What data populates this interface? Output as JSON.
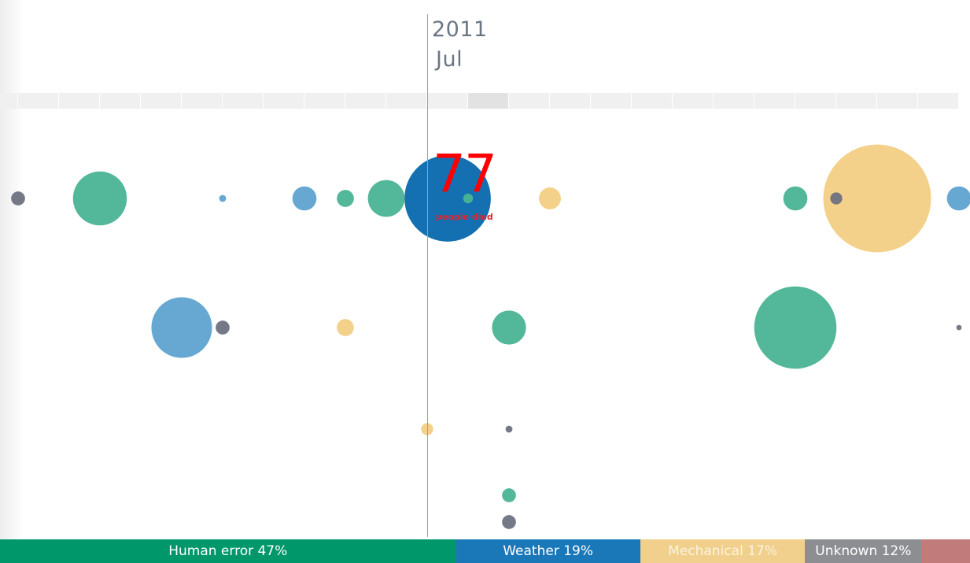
{
  "header": {
    "year": "2011",
    "month": "Jul"
  },
  "selection": {
    "deaths": "77",
    "deaths_label": "people died"
  },
  "colors": {
    "human_error": "#00976b",
    "weather": "#1b78b8",
    "mechanical": "#f1d08d",
    "unknown": "#8c8e92",
    "other": "#c27b7b",
    "human_error_bubble": "#4ab393",
    "weather_bubble": "#5ea3cf",
    "mechanical_bubble": "#f2cf84",
    "unknown_bubble": "#6e7180",
    "selected_bubble": "#1470b0",
    "highlight_text": "#ff0000"
  },
  "legend": [
    {
      "label": "Human error 47%",
      "share": 47,
      "color": "#00976b",
      "text_color": "#ffffff"
    },
    {
      "label": "Weather 19%",
      "share": 19,
      "color": "#1b78b8",
      "text_color": "#ffffff"
    },
    {
      "label": "Mechanical 17%",
      "share": 17,
      "color": "#f1d08d",
      "text_color": "#fbf3df"
    },
    {
      "label": "Unknown 12%",
      "share": 12,
      "color": "#8c8e92",
      "text_color": "#ffffff"
    },
    {
      "label": "",
      "share": 5,
      "color": "#c27b7b",
      "text_color": "#ffffff"
    }
  ],
  "chart_data": {
    "type": "scatter",
    "title": "",
    "xlabel": "",
    "ylabel": "",
    "x_unit": "month",
    "cursor_month_index": 10.5,
    "highlighted_month_index": 12,
    "month_count": 24,
    "size_encodes": "deaths",
    "series": [
      {
        "name": "Human error",
        "color": "#4ab393",
        "points": [
          {
            "month": 2,
            "deaths": 30
          },
          {
            "month": 8,
            "deaths": 3
          },
          {
            "month": 9,
            "deaths": 14
          },
          {
            "month": 11,
            "deaths": 1
          },
          {
            "month": 12,
            "deaths": 12
          },
          {
            "month": 12,
            "deaths": 2
          },
          {
            "month": 19,
            "deaths": 70
          },
          {
            "month": 19,
            "deaths": 6
          }
        ]
      },
      {
        "name": "Weather",
        "color": "#5ea3cf",
        "points": [
          {
            "month": 4,
            "deaths": 38
          },
          {
            "month": 5,
            "deaths": 0.5
          },
          {
            "month": 7,
            "deaths": 6
          },
          {
            "month": 23,
            "deaths": 6
          }
        ]
      },
      {
        "name": "Mechanical",
        "color": "#f2cf84",
        "points": [
          {
            "month": 8,
            "deaths": 3
          },
          {
            "month": 10,
            "deaths": 1.5
          },
          {
            "month": 13,
            "deaths": 5
          },
          {
            "month": 21,
            "deaths": 120
          }
        ]
      },
      {
        "name": "Unknown",
        "color": "#6e7180",
        "points": [
          {
            "month": 0,
            "deaths": 2
          },
          {
            "month": 5,
            "deaths": 2
          },
          {
            "month": 12,
            "deaths": 0.5
          },
          {
            "month": 12,
            "deaths": 2
          },
          {
            "month": 20,
            "deaths": 1.5
          },
          {
            "month": 23,
            "deaths": 0.3
          }
        ]
      },
      {
        "name": "Selected",
        "color": "#1470b0",
        "points": [
          {
            "month": 10.5,
            "deaths": 77
          }
        ]
      }
    ]
  }
}
